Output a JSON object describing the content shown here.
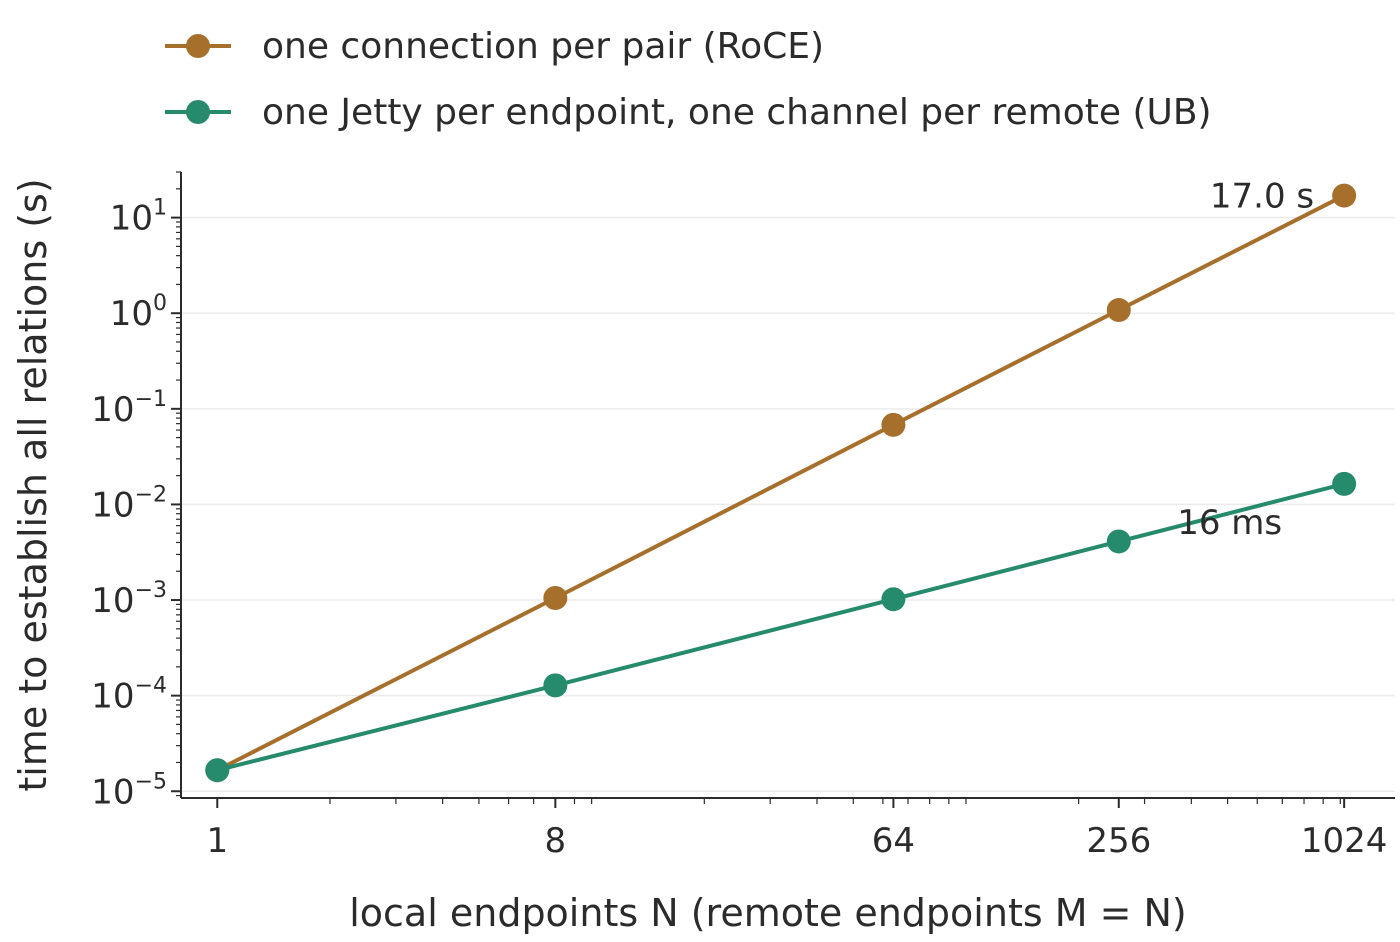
{
  "chart_data": {
    "type": "line",
    "title": "",
    "xlabel": "local endpoints N (remote endpoints M = N)",
    "ylabel": "time to establish all relations (s)",
    "x_scale": "log2",
    "y_scale": "log10",
    "x": [
      1,
      8,
      64,
      256,
      1024
    ],
    "x_tick_labels": [
      "1",
      "8",
      "64",
      "256",
      "1024"
    ],
    "y_ticks": [
      {
        "value": 1e-05,
        "base": "10",
        "exp": "−5"
      },
      {
        "value": 0.0001,
        "base": "10",
        "exp": "−4"
      },
      {
        "value": 0.001,
        "base": "10",
        "exp": "−3"
      },
      {
        "value": 0.01,
        "base": "10",
        "exp": "−2"
      },
      {
        "value": 0.1,
        "base": "10",
        "exp": "−1"
      },
      {
        "value": 1,
        "base": "10",
        "exp": "0"
      },
      {
        "value": 10,
        "base": "10",
        "exp": "1"
      }
    ],
    "xlim": [
      0.8,
      1400
    ],
    "ylim": [
      8.5e-06,
      30
    ],
    "grid": "horizontal",
    "legend_position": "top-left",
    "series": [
      {
        "name": "one connection per pair (RoCE)",
        "color": "#A66F2C",
        "values": [
          1.66e-05,
          0.00105,
          0.068,
          1.08,
          17.0
        ]
      },
      {
        "name": "one Jetty per endpoint, one channel per remote (UB)",
        "color": "#268A6C",
        "values": [
          1.66e-05,
          0.000128,
          0.00102,
          0.0041,
          0.0164
        ]
      }
    ],
    "annotations": [
      {
        "text": "17.0 s",
        "series": 0,
        "index": 4
      },
      {
        "text": "16 ms",
        "series": 1,
        "index": 4
      }
    ]
  }
}
